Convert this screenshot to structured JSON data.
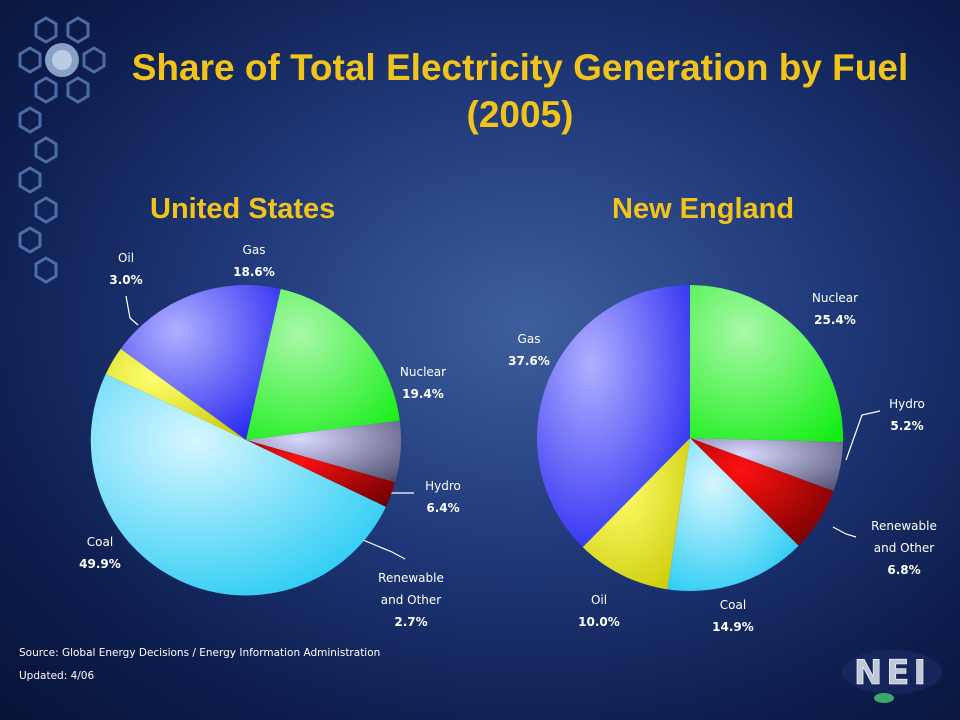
{
  "title": "Share of Total Electricity Generation by Fuel (2005)",
  "source": "Source: Global Energy Decisions / Energy Information Administration",
  "updated": "Updated: 4/06",
  "logo_text": "NEI",
  "colors": {
    "title": "#f2c41a",
    "Gas": "#2a2ae8",
    "Nuclear": "#2bee2b",
    "Hydro": "#8080b0",
    "Renewable and Other": "#dd1010",
    "Coal": "#22ccf0",
    "Oil": "#d8d800"
  },
  "chart_data": [
    {
      "type": "pie",
      "title": "United States",
      "slices": [
        {
          "label": "Gas",
          "value": 18.6,
          "display": "18.6%"
        },
        {
          "label": "Nuclear",
          "value": 19.4,
          "display": "19.4%"
        },
        {
          "label": "Hydro",
          "value": 6.4,
          "display": "6.4%"
        },
        {
          "label": "Renewable and Other",
          "label_lines": [
            "Renewable",
            "and Other"
          ],
          "value": 2.7,
          "display": "2.7%"
        },
        {
          "label": "Coal",
          "value": 49.9,
          "display": "49.9%"
        },
        {
          "label": "Oil",
          "value": 3.0,
          "display": "3.0%"
        }
      ]
    },
    {
      "type": "pie",
      "title": "New England",
      "slices": [
        {
          "label": "Nuclear",
          "value": 25.4,
          "display": "25.4%"
        },
        {
          "label": "Hydro",
          "value": 5.2,
          "display": "5.2%"
        },
        {
          "label": "Renewable and Other",
          "label_lines": [
            "Renewable",
            "and Other"
          ],
          "value": 6.8,
          "display": "6.8%"
        },
        {
          "label": "Coal",
          "value": 14.9,
          "display": "14.9%"
        },
        {
          "label": "Oil",
          "value": 10.0,
          "display": "10.0%"
        },
        {
          "label": "Gas",
          "value": 37.6,
          "display": "37.6%"
        }
      ]
    }
  ]
}
